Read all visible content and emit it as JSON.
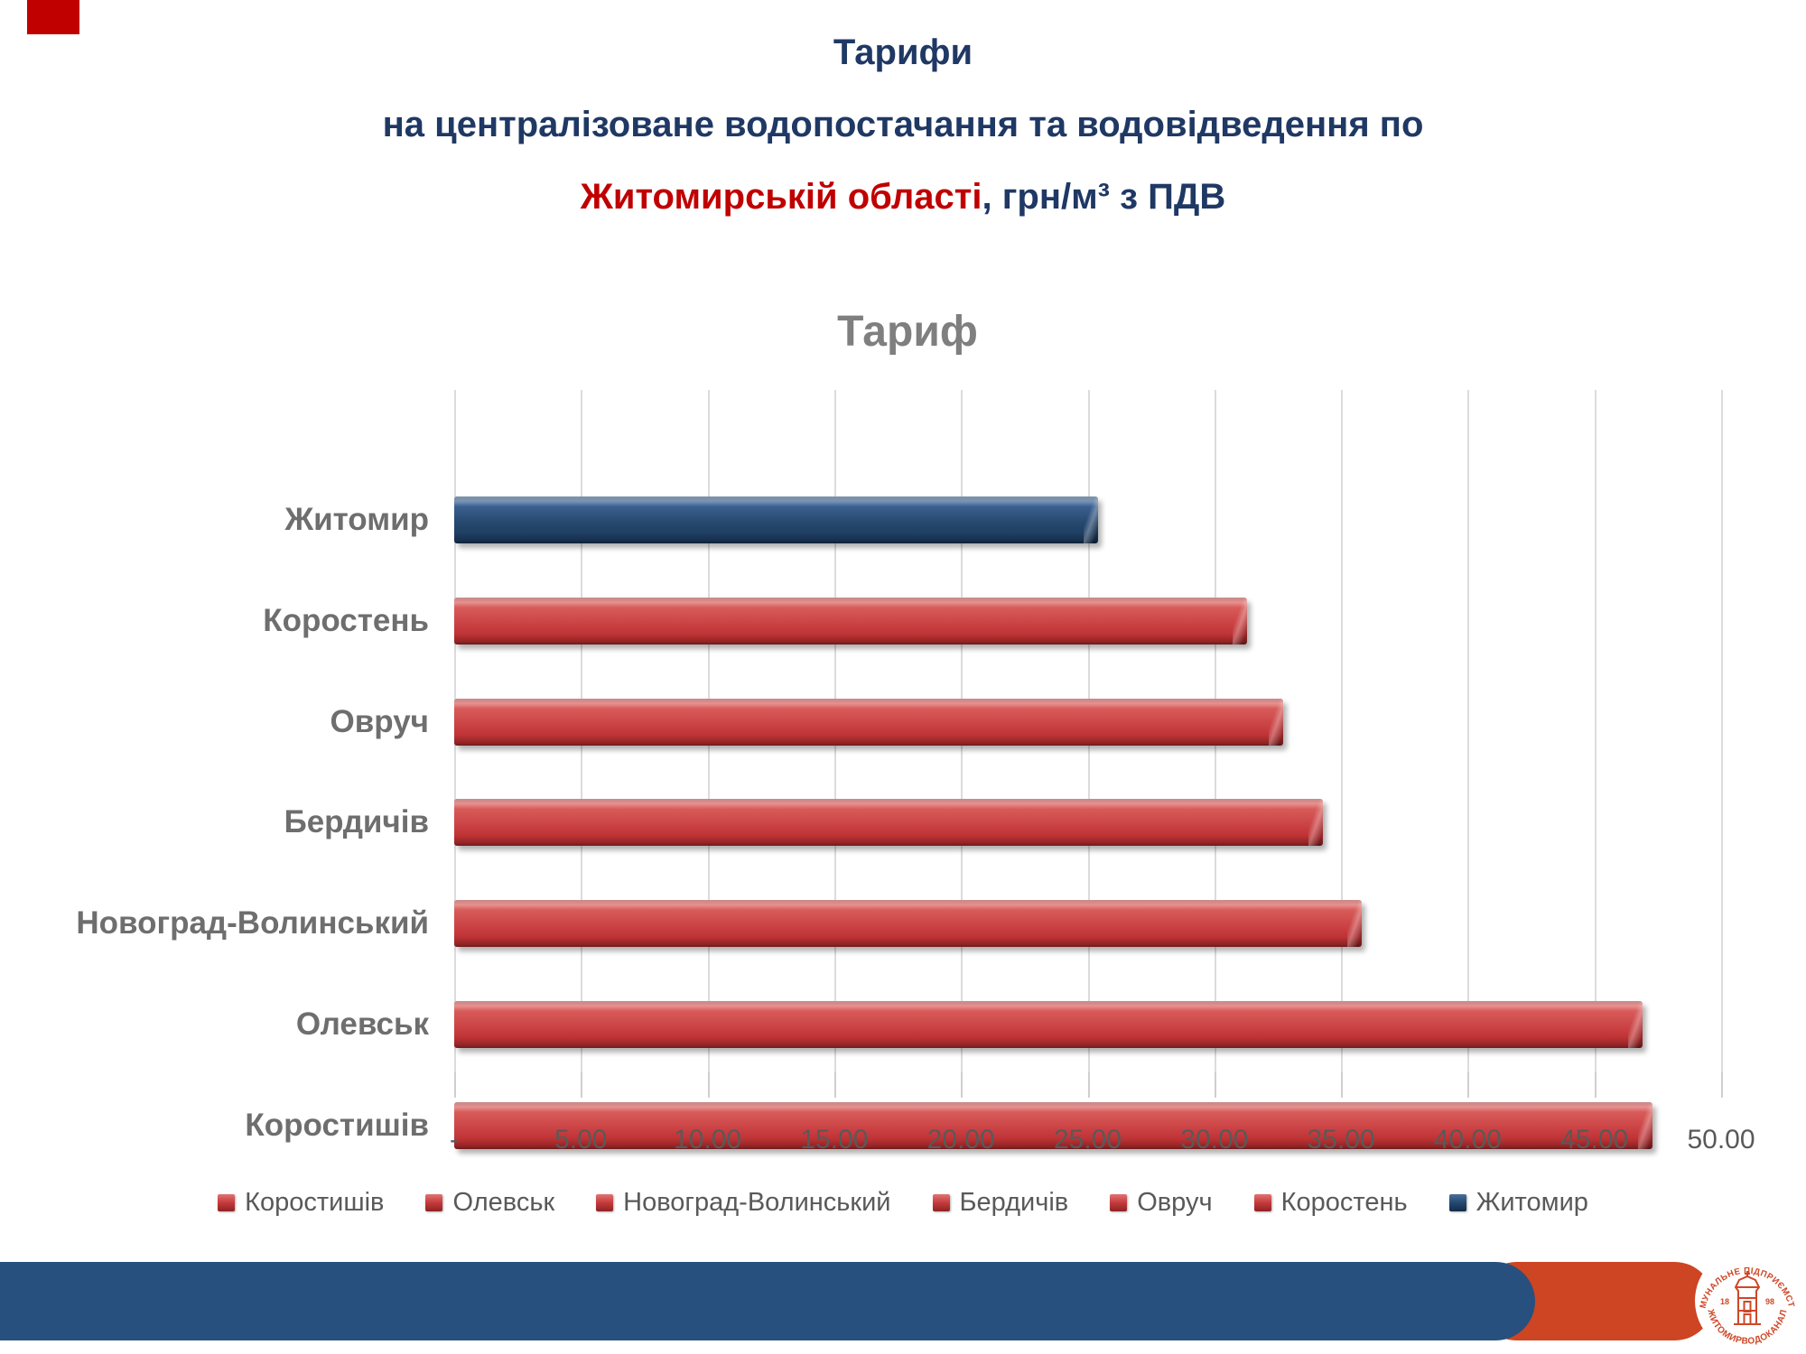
{
  "slide": {
    "title_line1": "Тарифи",
    "title_line2": "на централізоване водопостачання та водовідведення по",
    "title_line3_red": "Житомирській області",
    "title_line3_rest": ", грн/м³ з ПДВ"
  },
  "chart_data": {
    "type": "bar",
    "orientation": "horizontal",
    "title": "Тариф",
    "xlabel": "",
    "ylabel": "",
    "xlim": [
      0,
      50
    ],
    "tick_step": 5,
    "xtick_labels": [
      "-",
      "5.00",
      "10.00",
      "15.00",
      "20.00",
      "25.00",
      "30.00",
      "35.00",
      "40.00",
      "45.00",
      "50.00"
    ],
    "grid": true,
    "legend_position": "bottom",
    "rows": [
      {
        "category": "Житомир",
        "value": 25.4,
        "color": "blue"
      },
      {
        "category": "Коростень",
        "value": 31.3,
        "color": "red"
      },
      {
        "category": "Овруч",
        "value": 32.7,
        "color": "red"
      },
      {
        "category": "Бердичів",
        "value": 34.3,
        "color": "red"
      },
      {
        "category": "Новоград-Волинський",
        "value": 35.8,
        "color": "red"
      },
      {
        "category": "Олевськ",
        "value": 46.9,
        "color": "red"
      },
      {
        "category": "Коростишів",
        "value": 47.3,
        "color": "red"
      }
    ],
    "legend": [
      {
        "label": "Коростишів",
        "color": "red"
      },
      {
        "label": "Олевськ",
        "color": "red"
      },
      {
        "label": "Новоград-Волинський",
        "color": "red"
      },
      {
        "label": "Бердичів",
        "color": "red"
      },
      {
        "label": "Овруч",
        "color": "red"
      },
      {
        "label": "Коростень",
        "color": "red"
      },
      {
        "label": "Житомир",
        "color": "blue"
      }
    ],
    "colors": {
      "bar_red": "#c93f41",
      "bar_blue": "#224669",
      "gridline": "#dcdcdc",
      "axis_text": "#595959",
      "category_text": "#6e6e6e",
      "chart_title_text": "#7f7f7f",
      "main_title_text": "#1f3864",
      "accent_red_text": "#c00000"
    }
  },
  "footer": {
    "band_color": "#27507f",
    "accent_color": "#cd4522",
    "logo": {
      "text_top": "КОМУНАЛЬНЕ ПІДПРИЄМСТВО",
      "text_bottom": "ЖИТОМИРВОДОКАНАЛ",
      "year_left": "18",
      "year_right": "98"
    }
  },
  "decor": {
    "corner_color": "#c00000"
  }
}
